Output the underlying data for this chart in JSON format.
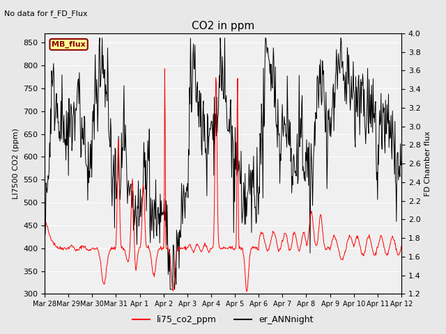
{
  "title": "CO2 in ppm",
  "top_left_text": "No data for f_FD_Flux",
  "ylabel_left": "LI7500 CO2 (ppm)",
  "ylabel_right": "FD Chamber flux",
  "ylim_left": [
    300,
    870
  ],
  "ylim_right": [
    1.2,
    4.0
  ],
  "yticks_left": [
    300,
    350,
    400,
    450,
    500,
    550,
    600,
    650,
    700,
    750,
    800,
    850
  ],
  "yticks_right": [
    1.2,
    1.4,
    1.6,
    1.8,
    2.0,
    2.2,
    2.4,
    2.6,
    2.8,
    3.0,
    3.2,
    3.4,
    3.6,
    3.8,
    4.0
  ],
  "xticklabels": [
    "Mar 28",
    "Mar 29",
    "Mar 30",
    "Mar 31",
    "Apr 1",
    "Apr 2",
    "Apr 3",
    "Apr 4",
    "Apr 5",
    "Apr 6",
    "Apr 7",
    "Apr 8",
    "Apr 9",
    "Apr 10",
    "Apr 11",
    "Apr 12"
  ],
  "legend_labels": [
    "li75_co2_ppm",
    "er_ANNnight"
  ],
  "legend_colors": [
    "red",
    "black"
  ],
  "mb_flux_label": "MB_flux",
  "mb_flux_bg": "#FFFF99",
  "mb_flux_border": "#8B0000",
  "mb_flux_text_color": "#8B0000",
  "bg_color": "#E8E8E8",
  "plot_bg_color": "#F0F0F0",
  "grid_color": "white",
  "n_days": 15,
  "seed": 42
}
